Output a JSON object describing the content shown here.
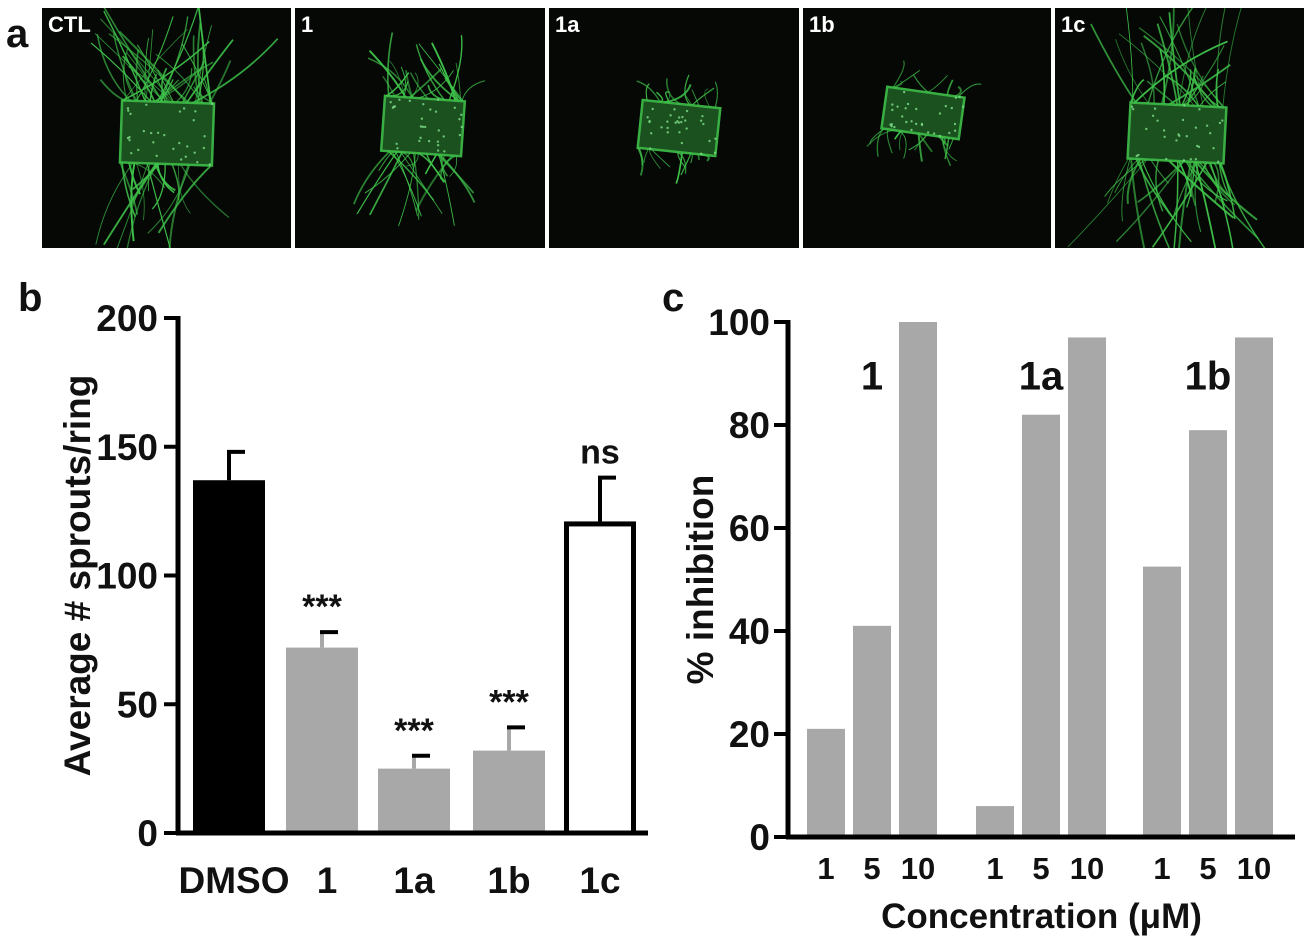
{
  "panels": {
    "a": "a",
    "b": "b",
    "c": "c"
  },
  "micrographs": [
    {
      "label": "CTL",
      "sprouting": "extensive"
    },
    {
      "label": "1",
      "sprouting": "moderate"
    },
    {
      "label": "1a",
      "sprouting": "minimal"
    },
    {
      "label": "1b",
      "sprouting": "minimal"
    },
    {
      "label": "1c",
      "sprouting": "extensive"
    }
  ],
  "colors": {
    "sprout": "#3fc24a",
    "background": "#050805",
    "bar_black": "#000000",
    "bar_gray": "#a8a8a8",
    "bar_white": "#ffffff"
  },
  "chart_data": [
    {
      "type": "bar",
      "panel": "b",
      "categories": [
        "DMSO",
        "1",
        "1a",
        "1b",
        "1c"
      ],
      "values": [
        137,
        72,
        25,
        32,
        121
      ],
      "error": [
        11,
        6,
        5,
        9,
        17
      ],
      "bar_colors": [
        "black",
        "gray",
        "gray",
        "gray",
        "white"
      ],
      "annotations": [
        "",
        "***",
        "***",
        "***",
        "ns"
      ],
      "ylabel": "Average # sprouts/ring",
      "xlabel": "",
      "ylim": [
        0,
        200
      ],
      "yticks": [
        0,
        50,
        100,
        150,
        200
      ]
    },
    {
      "type": "bar",
      "panel": "c",
      "groups": [
        {
          "label": "1",
          "x": [
            "1",
            "5",
            "10"
          ],
          "values": [
            21,
            41,
            100
          ]
        },
        {
          "label": "1a",
          "x": [
            "1",
            "5",
            "10"
          ],
          "values": [
            6,
            82,
            97
          ]
        },
        {
          "label": "1b",
          "x": [
            "1",
            "5",
            "10"
          ],
          "values": [
            52.5,
            79,
            97
          ]
        }
      ],
      "ylabel": "% inhibition",
      "xlabel": "Concentration (μM)",
      "ylim": [
        0,
        100
      ],
      "yticks": [
        0,
        20,
        40,
        60,
        80,
        100
      ]
    }
  ]
}
